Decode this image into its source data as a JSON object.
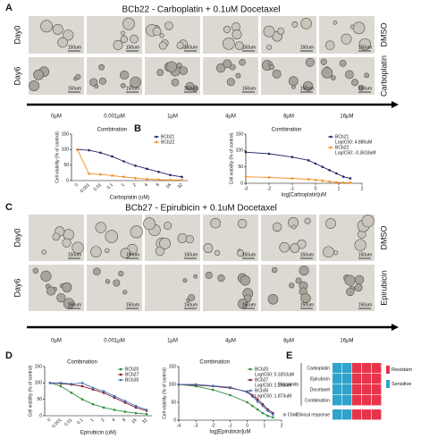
{
  "panels": {
    "A": {
      "label": "A",
      "title": "BCb22 - Carboplatin + 0.1uM Docetaxel",
      "rows": [
        "Day0",
        "Day6"
      ],
      "conditions": [
        "DMSO",
        "Carboplatin"
      ],
      "scale_bar": "150um",
      "doses": [
        "0µM",
        "0.001µM",
        "1µM",
        "4µM",
        "8µM",
        "16µM"
      ]
    },
    "B": {
      "label": "B"
    },
    "C": {
      "label": "C",
      "title": "BCb27 - Epirubicin + 0.1uM Docetaxel",
      "rows": [
        "Day0",
        "Day6"
      ],
      "conditions": [
        "DMSO",
        "Epirubicin"
      ],
      "scale_bar": "150um",
      "doses": [
        "0µM",
        "0.001µM",
        "1µM",
        "4µM",
        "8µM",
        "16µM"
      ]
    },
    "D": {
      "label": "D"
    },
    "E": {
      "label": "E",
      "groups": [
        "Organoids",
        "in Clinic"
      ],
      "rows": [
        "Carboplatin",
        "Epirubicin",
        "Docetaxel",
        "Combination",
        "Clinical response"
      ],
      "legend": [
        {
          "name": "Resistant",
          "color": "#e8344a"
        },
        {
          "name": "Sensitive",
          "color": "#2ea3cc"
        }
      ],
      "cells": [
        [
          "Sensitive",
          "Sensitive",
          "Resistant",
          "Resistant",
          "Resistant"
        ],
        [
          "Sensitive",
          "Sensitive",
          "Resistant",
          "Resistant",
          "Resistant"
        ],
        [
          "Sensitive",
          "Sensitive",
          "Resistant",
          "Resistant",
          "Resistant"
        ],
        [
          "Sensitive",
          "Sensitive",
          "Resistant",
          "Resistant",
          "Resistant"
        ],
        [
          "Sensitive",
          "Sensitive",
          "Resistant",
          "Resistant",
          "Resistant"
        ]
      ]
    }
  },
  "chart_data": [
    {
      "type": "line",
      "title": "Combination",
      "xlabel": "Carboplatin (uM)",
      "ylabel": "Cell viability (% of control)",
      "categories": [
        "0",
        "0.001",
        "0.01",
        "0.1",
        "1",
        "2",
        "4",
        "8",
        "16",
        "32"
      ],
      "series": [
        {
          "name": "BCb21",
          "color": "#1f2466",
          "values": [
            100,
            98,
            90,
            78,
            62,
            48,
            38,
            28,
            18,
            12
          ]
        },
        {
          "name": "BCb22",
          "color": "#f28c1e",
          "values": [
            100,
            22,
            20,
            16,
            12,
            8,
            5,
            3,
            2,
            2
          ]
        }
      ],
      "ylim": [
        0,
        150
      ],
      "yticks": [
        0,
        50,
        100,
        150
      ],
      "legend": "upper right"
    },
    {
      "type": "line",
      "title": "Combination",
      "xlabel": "log[Carboplatin]uM",
      "ylabel": "Cell viability (% of control)",
      "x": [
        -3,
        -2,
        -1,
        -0.3,
        0,
        0.3,
        0.6,
        0.9,
        1.2,
        1.5
      ],
      "series": [
        {
          "name": "BCb21",
          "ic50_label": "LogIC50: 4.886uM",
          "color": "#1f2466",
          "values": [
            95,
            90,
            80,
            70,
            60,
            50,
            40,
            30,
            20,
            15
          ]
        },
        {
          "name": "BCb22",
          "ic50_label": "LogIC50: -0.3618uM",
          "color": "#f28c1e",
          "values": [
            20,
            18,
            15,
            12,
            10,
            8,
            5,
            3,
            2,
            2
          ]
        }
      ],
      "xlim": [
        -3,
        2
      ],
      "xticks": [
        -3,
        -2,
        -1,
        0,
        1,
        2
      ],
      "ylim": [
        0,
        150
      ],
      "yticks": [
        0,
        50,
        100,
        150
      ],
      "legend": "upper right"
    },
    {
      "type": "line",
      "title": "Combination",
      "xlabel": "Epirubicin (uM)",
      "ylabel": "Cell viability (% of control)",
      "categories": [
        "0",
        "0.001",
        "0.01",
        "0.1",
        "1",
        "2",
        "4",
        "8",
        "16",
        "32"
      ],
      "series": [
        {
          "name": "BCb20",
          "color": "#2e8b3a",
          "values": [
            100,
            90,
            70,
            50,
            35,
            25,
            18,
            12,
            8,
            5
          ]
        },
        {
          "name": "BCb27",
          "color": "#7b1f2a",
          "values": [
            100,
            98,
            95,
            90,
            80,
            70,
            55,
            40,
            25,
            15
          ]
        },
        {
          "name": "BCb30",
          "color": "#4a6fb5",
          "values": [
            100,
            100,
            97,
            100,
            85,
            75,
            60,
            45,
            30,
            18
          ]
        }
      ],
      "ylim": [
        0,
        150
      ],
      "yticks": [
        0,
        50,
        100,
        150
      ],
      "legend": "upper right"
    },
    {
      "type": "line",
      "title": "Combination",
      "xlabel": "log[Epirubicin]uM",
      "ylabel": "Cell viability (% of control)",
      "x": [
        -4,
        -3,
        -2,
        -1,
        0,
        0.3,
        0.6,
        0.9,
        1.2,
        1.5
      ],
      "series": [
        {
          "name": "BCb20",
          "ic50_label": "LogIC50: 0.3203uM",
          "color": "#2e8b3a",
          "values": [
            100,
            95,
            85,
            70,
            50,
            40,
            30,
            20,
            12,
            8
          ]
        },
        {
          "name": "BCb27",
          "ic50_label": "LogIC50: 2.255uM",
          "color": "#7b1f2a",
          "values": [
            100,
            98,
            95,
            90,
            80,
            70,
            58,
            45,
            30,
            20
          ]
        },
        {
          "name": "BCb30",
          "ic50_label": "LogIC50: 1.873uM",
          "color": "#4a6fb5",
          "values": [
            100,
            100,
            96,
            92,
            78,
            66,
            52,
            40,
            26,
            16
          ]
        }
      ],
      "xlim": [
        -4,
        2
      ],
      "xticks": [
        -4,
        -3,
        -2,
        -1,
        0,
        1,
        2
      ],
      "ylim": [
        0,
        150
      ],
      "yticks": [
        0,
        50,
        100,
        150
      ],
      "legend": "upper right"
    }
  ]
}
